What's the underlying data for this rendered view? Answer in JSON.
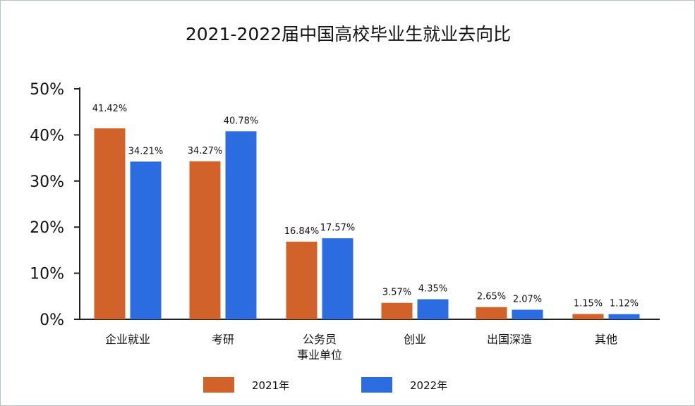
{
  "title": "2021-2022届中国高校毕业生就业去向比",
  "colors": {
    "s2021": "#d0622a",
    "s2022": "#2b6de0"
  },
  "chart_data": {
    "type": "bar",
    "title": "2021-2022届中国高校毕业生就业去向比",
    "categories": [
      [
        "企业就业"
      ],
      [
        "考研"
      ],
      [
        "公务员",
        "事业单位"
      ],
      [
        "创业"
      ],
      [
        "出国深造"
      ],
      [
        "其他"
      ]
    ],
    "series": [
      {
        "name": "2021年",
        "values": [
          41.42,
          34.27,
          16.84,
          3.57,
          2.65,
          1.15
        ],
        "labels": [
          "41.42%",
          "34.27%",
          "16.84%",
          "3.57%",
          "2.65%",
          "1.15%"
        ]
      },
      {
        "name": "2022年",
        "values": [
          34.21,
          40.78,
          17.57,
          4.35,
          2.07,
          1.12
        ],
        "labels": [
          "34.21%",
          "40.78%",
          "17.57%",
          "4.35%",
          "2.07%",
          "1.12%"
        ]
      }
    ],
    "yticks": [
      "0%",
      "10%",
      "20%",
      "30%",
      "40%",
      "50%"
    ],
    "ylim": [
      0,
      50
    ],
    "legend": "bottom",
    "grid": false
  }
}
